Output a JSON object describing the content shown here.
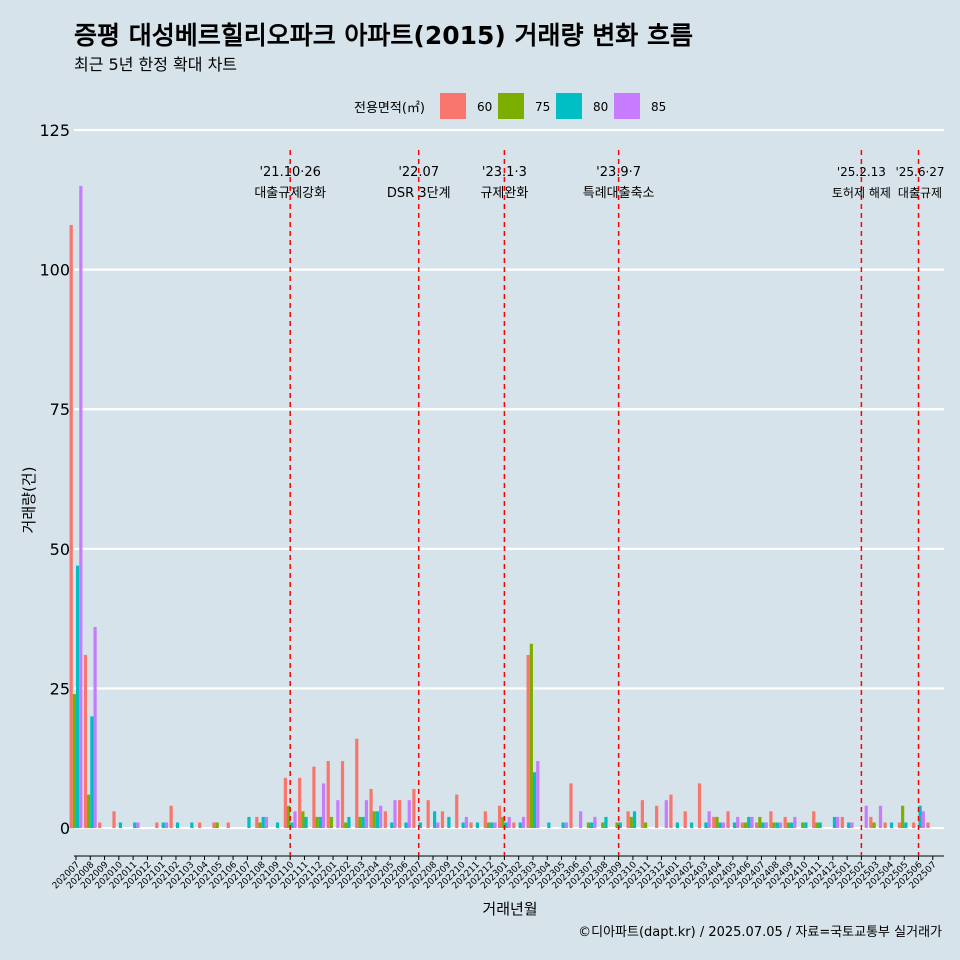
{
  "chart_data": {
    "type": "bar",
    "title": "증평 대성베르힐리오파크 아파트(2015) 거래량 변화 흐름",
    "subtitle": "최근 5년 한정 확대 차트",
    "xlabel": "거래년월",
    "ylabel": "거래량(건)",
    "ylim": [
      -5,
      125
    ],
    "yticks": [
      0,
      25,
      50,
      75,
      100,
      125
    ],
    "legend": {
      "title": "전용면적(㎡)",
      "position": "top",
      "entries": [
        {
          "name": "60",
          "color": "#f8766d"
        },
        {
          "name": "75",
          "color": "#7cae00"
        },
        {
          "name": "80",
          "color": "#00bfc4"
        },
        {
          "name": "85",
          "color": "#c77cff"
        }
      ]
    },
    "categories": [
      "202007",
      "202008",
      "202009",
      "202010",
      "202011",
      "202012",
      "202101",
      "202102",
      "202103",
      "202104",
      "202105",
      "202106",
      "202107",
      "202108",
      "202109",
      "202110",
      "202111",
      "202112",
      "202201",
      "202202",
      "202203",
      "202204",
      "202205",
      "202206",
      "202207",
      "202208",
      "202209",
      "202210",
      "202211",
      "202212",
      "202301",
      "202302",
      "202303",
      "202304",
      "202305",
      "202306",
      "202307",
      "202308",
      "202309",
      "202310",
      "202311",
      "202312",
      "202401",
      "202402",
      "202403",
      "202404",
      "202405",
      "202406",
      "202407",
      "202408",
      "202409",
      "202410",
      "202411",
      "202412",
      "202501",
      "202502",
      "202503",
      "202504",
      "202505",
      "202506",
      "202507"
    ],
    "series": [
      {
        "name": "60",
        "values": [
          108,
          31,
          1,
          3,
          null,
          null,
          1,
          4,
          null,
          1,
          1,
          1,
          null,
          2,
          null,
          9,
          9,
          11,
          12,
          12,
          16,
          7,
          3,
          5,
          7,
          5,
          3,
          6,
          1,
          3,
          4,
          1,
          31,
          null,
          null,
          8,
          null,
          null,
          null,
          3,
          5,
          4,
          6,
          3,
          8,
          2,
          3,
          1,
          1,
          3,
          2,
          null,
          3,
          null,
          2,
          null,
          2,
          1,
          1,
          1,
          1
        ]
      },
      {
        "name": "75",
        "values": [
          24,
          6,
          null,
          null,
          null,
          null,
          null,
          null,
          null,
          null,
          1,
          null,
          null,
          1,
          null,
          4,
          3,
          2,
          2,
          1,
          2,
          3,
          null,
          null,
          null,
          null,
          null,
          null,
          null,
          1,
          2,
          null,
          33,
          null,
          null,
          null,
          1,
          1,
          1,
          2,
          1,
          null,
          null,
          null,
          null,
          2,
          null,
          1,
          2,
          1,
          1,
          1,
          1,
          null,
          null,
          null,
          1,
          null,
          4,
          null,
          null
        ]
      },
      {
        "name": "80",
        "values": [
          47,
          20,
          null,
          1,
          1,
          null,
          1,
          1,
          1,
          null,
          null,
          null,
          2,
          2,
          1,
          1,
          2,
          2,
          null,
          2,
          2,
          3,
          1,
          1,
          1,
          3,
          2,
          1,
          1,
          1,
          1,
          1,
          10,
          1,
          1,
          null,
          1,
          2,
          1,
          3,
          null,
          null,
          1,
          1,
          1,
          1,
          1,
          2,
          1,
          1,
          1,
          1,
          1,
          2,
          1,
          null,
          null,
          1,
          1,
          4,
          null
        ]
      },
      {
        "name": "85",
        "values": [
          115,
          36,
          null,
          null,
          1,
          null,
          1,
          null,
          null,
          null,
          null,
          null,
          null,
          2,
          null,
          3,
          null,
          8,
          5,
          null,
          5,
          4,
          5,
          5,
          null,
          1,
          null,
          2,
          null,
          1,
          2,
          2,
          12,
          null,
          1,
          3,
          2,
          null,
          null,
          null,
          null,
          5,
          null,
          null,
          3,
          1,
          2,
          2,
          1,
          1,
          2,
          null,
          null,
          2,
          1,
          4,
          4,
          null,
          null,
          3,
          null
        ]
      }
    ],
    "annotations": [
      {
        "at": "202110",
        "date": "'21.10·26",
        "label": "대출규제강화"
      },
      {
        "at": "202207",
        "date": "'22.07",
        "label": "DSR 3단계"
      },
      {
        "at": "202301",
        "date": "'23.1·3",
        "label": "규제완화"
      },
      {
        "at": "202309",
        "date": "'23.9·7",
        "label": "특례대출축소"
      },
      {
        "at": "202502",
        "date": "'25.2.13",
        "label": "토허제 해제"
      },
      {
        "at": "202506",
        "date": "'25.6·27",
        "label": "대출규제"
      }
    ],
    "caption": "©디아파트(dapt.kr) / 2025.07.05 / 자료=국토교통부 실거래가",
    "grid": true
  }
}
